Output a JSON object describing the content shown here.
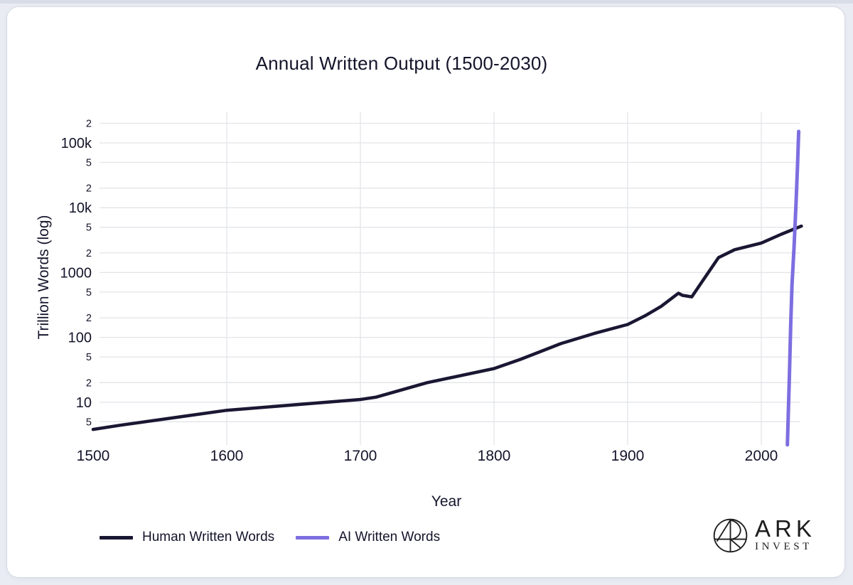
{
  "title": "Annual Written Output (1500-2030)",
  "colors": {
    "page_bg": "#e9ecf3",
    "top_strip": "#d9dde7",
    "card_bg": "#ffffff",
    "grid": "#e3e4e9",
    "text": "#14142b",
    "human": "#1a1733",
    "ai": "#7d6ee0",
    "logo": "#1d1d1f"
  },
  "chart_data": {
    "type": "line",
    "title": "Annual Written Output (1500-2030)",
    "xlabel": "Year",
    "ylabel": "Trillion Words (log)",
    "grid": true,
    "legend_position": "bottom-left",
    "x_axis": {
      "range": [
        1500,
        2030
      ],
      "ticks": [
        1500,
        1600,
        1700,
        1800,
        1900,
        2000
      ]
    },
    "y_axis": {
      "scale": "log",
      "unit": "trillion words",
      "range": [
        2.5,
        300000
      ],
      "ticks": [
        {
          "value": 5,
          "label": "5",
          "major": false
        },
        {
          "value": 10,
          "label": "10",
          "major": true
        },
        {
          "value": 20,
          "label": "2",
          "major": false
        },
        {
          "value": 50,
          "label": "5",
          "major": false
        },
        {
          "value": 100,
          "label": "100",
          "major": true
        },
        {
          "value": 200,
          "label": "2",
          "major": false
        },
        {
          "value": 500,
          "label": "5",
          "major": false
        },
        {
          "value": 1000,
          "label": "1000",
          "major": true
        },
        {
          "value": 2000,
          "label": "2",
          "major": false
        },
        {
          "value": 5000,
          "label": "5",
          "major": false
        },
        {
          "value": 10000,
          "label": "10k",
          "major": true
        },
        {
          "value": 20000,
          "label": "2",
          "major": false
        },
        {
          "value": 50000,
          "label": "5",
          "major": false
        },
        {
          "value": 100000,
          "label": "100k",
          "major": true
        },
        {
          "value": 200000,
          "label": "2",
          "major": false
        }
      ]
    },
    "series": [
      {
        "name": "Human Written Words",
        "color": "#1a1733",
        "width": 4.5,
        "points": [
          [
            1500,
            3.8
          ],
          [
            1520,
            4.4
          ],
          [
            1600,
            7.5
          ],
          [
            1700,
            11
          ],
          [
            1712,
            12
          ],
          [
            1750,
            20
          ],
          [
            1800,
            33
          ],
          [
            1820,
            46
          ],
          [
            1850,
            80
          ],
          [
            1875,
            115
          ],
          [
            1900,
            158
          ],
          [
            1913,
            215
          ],
          [
            1925,
            300
          ],
          [
            1938,
            480
          ],
          [
            1941,
            445
          ],
          [
            1948,
            422
          ],
          [
            1955,
            690
          ],
          [
            1968,
            1700
          ],
          [
            1980,
            2250
          ],
          [
            2000,
            2850
          ],
          [
            2015,
            3900
          ],
          [
            2030,
            5200
          ]
        ]
      },
      {
        "name": "AI Written Words",
        "color": "#7d6ee0",
        "width": 5,
        "points": [
          [
            2019.5,
            2.2
          ],
          [
            2021,
            25
          ],
          [
            2022,
            160
          ],
          [
            2023,
            650
          ],
          [
            2024.5,
            2500
          ],
          [
            2026,
            12000
          ],
          [
            2027,
            40000
          ],
          [
            2028,
            150000
          ]
        ]
      }
    ]
  },
  "branding": {
    "name": "ARK",
    "subname": "INVEST"
  }
}
